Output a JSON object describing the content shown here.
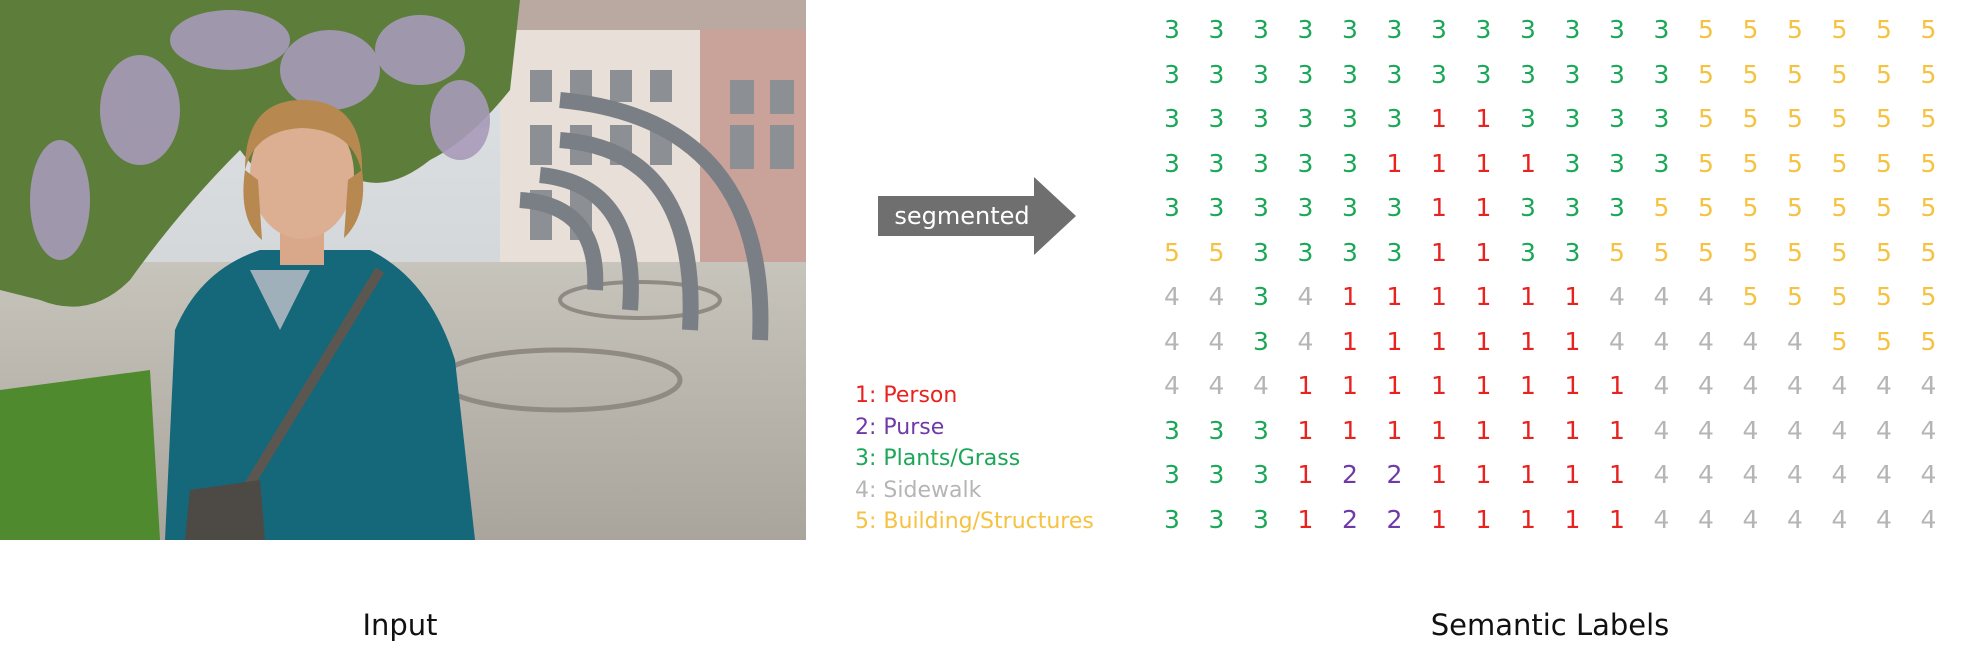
{
  "arrow": {
    "label": "segmented"
  },
  "legend": [
    {
      "label": "1: Person",
      "color": "#e8231f"
    },
    {
      "label": "2: Purse",
      "color": "#6f3aa6"
    },
    {
      "label": "3: Plants/Grass",
      "color": "#1aa757"
    },
    {
      "label": "4: Sidewalk",
      "color": "#b5b5b5"
    },
    {
      "label": "5: Building/Structures",
      "color": "#f5c242"
    }
  ],
  "grid": [
    [
      3,
      3,
      3,
      3,
      3,
      3,
      3,
      3,
      3,
      3,
      3,
      3,
      5,
      5,
      5,
      5,
      5,
      5
    ],
    [
      3,
      3,
      3,
      3,
      3,
      3,
      3,
      3,
      3,
      3,
      3,
      3,
      5,
      5,
      5,
      5,
      5,
      5
    ],
    [
      3,
      3,
      3,
      3,
      3,
      3,
      1,
      1,
      3,
      3,
      3,
      3,
      5,
      5,
      5,
      5,
      5,
      5
    ],
    [
      3,
      3,
      3,
      3,
      3,
      1,
      1,
      1,
      1,
      3,
      3,
      3,
      5,
      5,
      5,
      5,
      5,
      5
    ],
    [
      3,
      3,
      3,
      3,
      3,
      3,
      1,
      1,
      3,
      3,
      3,
      5,
      5,
      5,
      5,
      5,
      5,
      5
    ],
    [
      5,
      5,
      3,
      3,
      3,
      3,
      1,
      1,
      3,
      3,
      5,
      5,
      5,
      5,
      5,
      5,
      5,
      5
    ],
    [
      4,
      4,
      3,
      4,
      1,
      1,
      1,
      1,
      1,
      1,
      4,
      4,
      4,
      5,
      5,
      5,
      5,
      5
    ],
    [
      4,
      4,
      3,
      4,
      1,
      1,
      1,
      1,
      1,
      1,
      4,
      4,
      4,
      4,
      4,
      5,
      5,
      5
    ],
    [
      4,
      4,
      4,
      1,
      1,
      1,
      1,
      1,
      1,
      1,
      1,
      4,
      4,
      4,
      4,
      4,
      4,
      4
    ],
    [
      3,
      3,
      3,
      1,
      1,
      1,
      1,
      1,
      1,
      1,
      1,
      4,
      4,
      4,
      4,
      4,
      4,
      4
    ],
    [
      3,
      3,
      3,
      1,
      2,
      2,
      1,
      1,
      1,
      1,
      1,
      4,
      4,
      4,
      4,
      4,
      4,
      4
    ],
    [
      3,
      3,
      3,
      1,
      2,
      2,
      1,
      1,
      1,
      1,
      1,
      4,
      4,
      4,
      4,
      4,
      4,
      4
    ]
  ],
  "captions": {
    "input": "Input",
    "labels": "Semantic Labels"
  }
}
